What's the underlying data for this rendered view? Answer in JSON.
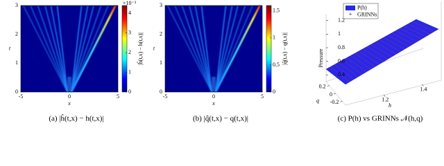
{
  "panels": [
    {
      "caption": "(a) |ĥ(t,x) − h(t,x)|",
      "x_label": "x",
      "y_label": "t",
      "xlim": [
        -5,
        5
      ],
      "xticks": [
        -5,
        0,
        5
      ],
      "ylim": [
        0,
        3
      ],
      "yticks": [
        0,
        1,
        2,
        3
      ],
      "colorbar_label": "|ĥ(t,x) − h(t,x)|",
      "colorbar_exponent": "×10⁻³",
      "colorbar_lim": [
        0,
        4.4
      ],
      "colorbar_ticks": [
        0,
        1,
        2,
        3,
        4
      ]
    },
    {
      "caption": "(b) |q̂(t,x) − q(t,x)|",
      "x_label": "x",
      "y_label": "t",
      "xlim": [
        -5,
        5
      ],
      "xticks": [
        -5,
        0,
        5
      ],
      "ylim": [
        0,
        3
      ],
      "yticks": [
        0,
        1,
        2,
        3
      ],
      "colorbar_label": "|q̂(t,x) − q(t,x)|",
      "colorbar_lim": [
        0,
        1.6
      ],
      "colorbar_ticks": [
        0,
        0.5,
        1,
        1.5
      ]
    },
    {
      "caption": "(c) P(h) vs GRINNs 𝒩(h,q)",
      "z_label": "Pressure",
      "q_label": "q",
      "h_label": "h",
      "zlim": [
        0.3,
        1.3
      ],
      "zticks": [
        0.4,
        0.6,
        0.8,
        1,
        1.2
      ],
      "qlim": [
        -0.3,
        0.3
      ],
      "qticks": [
        0.2,
        0,
        -0.2
      ],
      "hlim": [
        1.0,
        1.5
      ],
      "hticks": [
        1.2,
        1.4
      ],
      "legend": [
        "P(h)",
        "GRINNs"
      ]
    }
  ]
}
